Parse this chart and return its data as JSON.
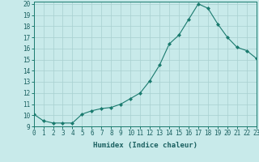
{
  "x": [
    0,
    1,
    2,
    3,
    4,
    5,
    6,
    7,
    8,
    9,
    10,
    11,
    12,
    13,
    14,
    15,
    16,
    17,
    18,
    19,
    20,
    21,
    22,
    23
  ],
  "y": [
    10.1,
    9.5,
    9.3,
    9.3,
    9.3,
    10.1,
    10.4,
    10.6,
    10.7,
    11.0,
    11.5,
    12.0,
    13.1,
    14.5,
    16.4,
    17.2,
    18.6,
    20.0,
    19.6,
    18.2,
    17.0,
    16.1,
    15.8,
    15.1
  ],
  "line_color": "#1a7a6e",
  "marker": "D",
  "marker_size": 2.0,
  "bg_color": "#c8eaea",
  "grid_color": "#a8d0d0",
  "xlabel": "Humidex (Indice chaleur)",
  "ylim": [
    9,
    20.2
  ],
  "xlim": [
    0,
    23
  ],
  "yticks": [
    9,
    10,
    11,
    12,
    13,
    14,
    15,
    16,
    17,
    18,
    19,
    20
  ],
  "xticks": [
    0,
    1,
    2,
    3,
    4,
    5,
    6,
    7,
    8,
    9,
    10,
    11,
    12,
    13,
    14,
    15,
    16,
    17,
    18,
    19,
    20,
    21,
    22,
    23
  ],
  "font_color": "#1a6060",
  "tick_fontsize": 5.5,
  "xlabel_fontsize": 6.5
}
